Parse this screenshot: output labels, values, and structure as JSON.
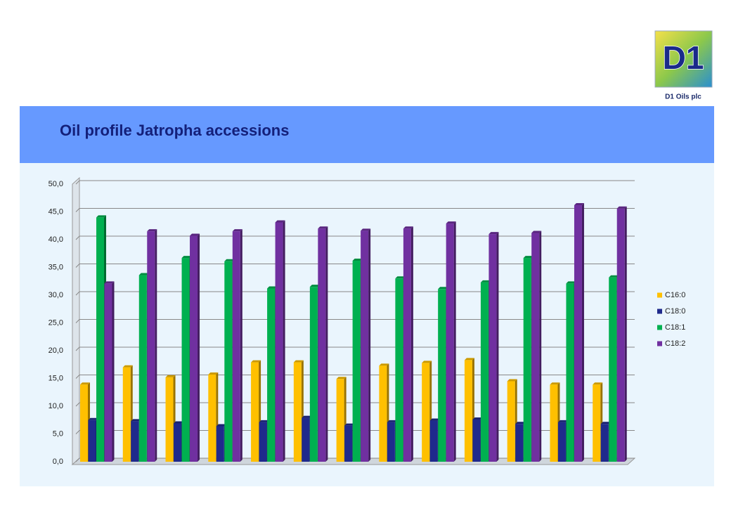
{
  "logo": {
    "mark": "D1",
    "caption": "D1 Oils plc"
  },
  "chart_data": {
    "type": "bar",
    "title": "Oil profile Jatropha accessions",
    "categories": [
      null,
      null,
      null,
      null,
      null,
      null,
      null,
      null,
      null,
      null,
      null,
      null,
      null
    ],
    "series": [
      {
        "name": "C16:0",
        "color": "#ffc000",
        "values": [
          13.9,
          17.0,
          15.2,
          15.7,
          17.9,
          17.9,
          14.9,
          17.3,
          17.8,
          18.3,
          14.5,
          13.9,
          13.9
        ]
      },
      {
        "name": "C18:0",
        "color": "#1f2a8c",
        "values": [
          7.5,
          7.3,
          6.9,
          6.4,
          7.1,
          7.9,
          6.5,
          7.1,
          7.4,
          7.6,
          6.8,
          7.1,
          6.8
        ]
      },
      {
        "name": "C18:1",
        "color": "#00b050",
        "values": [
          44.0,
          33.6,
          36.7,
          36.1,
          31.2,
          31.5,
          36.2,
          33.0,
          31.1,
          32.3,
          36.7,
          32.1,
          33.2
        ]
      },
      {
        "name": "C18:2",
        "color": "#7030a0",
        "values": [
          32.1,
          41.5,
          40.7,
          41.5,
          43.1,
          42.0,
          41.6,
          42.0,
          42.9,
          41.0,
          41.2,
          46.2,
          45.6
        ]
      }
    ],
    "ylim": [
      0,
      50
    ],
    "yticks": [
      {
        "value": 0,
        "label": "0,0"
      },
      {
        "value": 5,
        "label": "5,0"
      },
      {
        "value": 10,
        "label": "10,0"
      },
      {
        "value": 15,
        "label": "15,0"
      },
      {
        "value": 20,
        "label": "20,0"
      },
      {
        "value": 25,
        "label": "25,0"
      },
      {
        "value": 30,
        "label": "30,0"
      },
      {
        "value": 35,
        "label": "35,0"
      },
      {
        "value": 40,
        "label": "40,0"
      },
      {
        "value": 45,
        "label": "45,0"
      },
      {
        "value": 50,
        "label": "50,0"
      }
    ],
    "grid": true,
    "legend": "right"
  }
}
